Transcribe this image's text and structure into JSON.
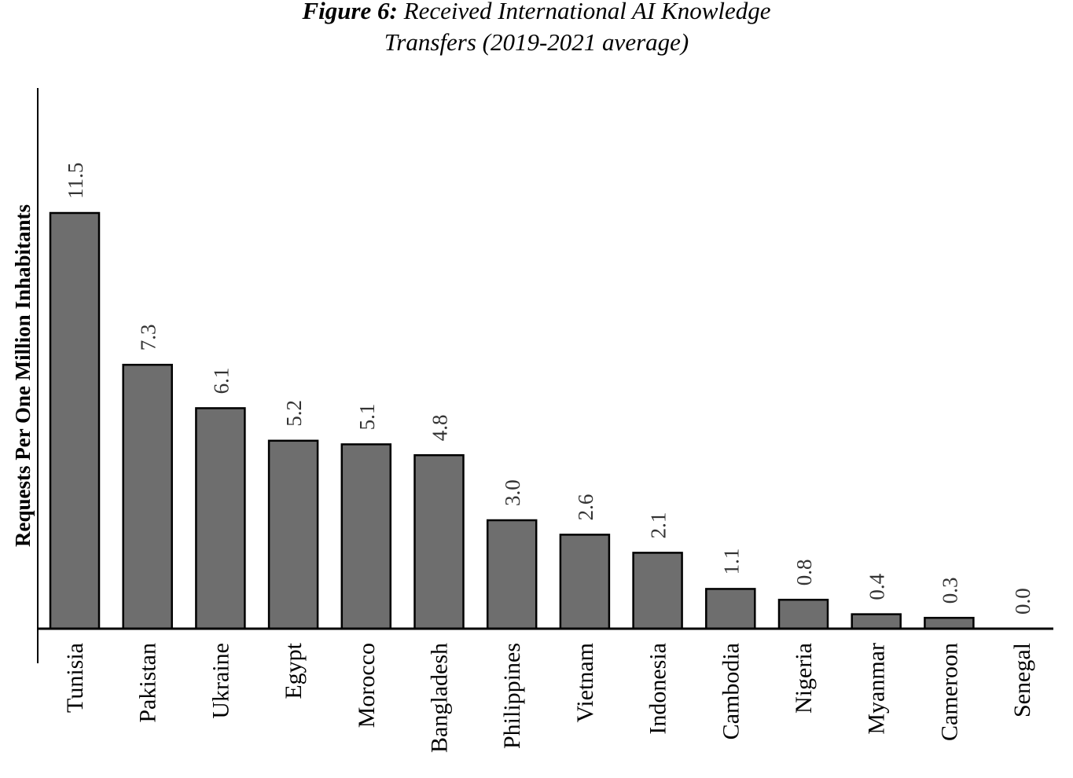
{
  "title": {
    "label": "Figure 6:",
    "line1": "Received International AI Knowledge",
    "line2": "Transfers (2019-2021 average)"
  },
  "chart_data": {
    "type": "bar",
    "title": "Figure 6: Received International AI Knowledge Transfers (2019-2021 average)",
    "xlabel": "",
    "ylabel": "Requests Per One Million Inhabitants",
    "categories": [
      "Tunisia",
      "Pakistan",
      "Ukraine",
      "Egypt",
      "Morocco",
      "Bangladesh",
      "Philippines",
      "Vietnam",
      "Indonesia",
      "Cambodia",
      "Nigeria",
      "Myanmar",
      "Cameroon",
      "Senegal"
    ],
    "values": [
      11.5,
      7.3,
      6.1,
      5.2,
      5.1,
      4.8,
      3.0,
      2.6,
      2.1,
      1.1,
      0.8,
      0.4,
      0.3,
      0.0
    ],
    "data_labels": [
      "11.5",
      "7.3",
      "6.1",
      "5.2",
      "5.1",
      "4.8",
      "3.0",
      "2.6",
      "2.1",
      "1.1",
      "0.8",
      "0.4",
      "0.3",
      "0.0"
    ],
    "ylim": [
      0,
      15
    ],
    "grid": false,
    "legend": "none",
    "bar_color": "#6e6e6e",
    "bar_edge_color": "#000000"
  }
}
